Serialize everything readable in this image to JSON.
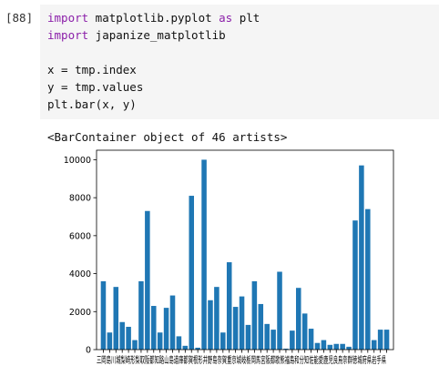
{
  "cell": {
    "prompt": "[88]",
    "code": [
      {
        "kw1": "import",
        "text": " matplotlib.pyplot ",
        "kw2": "as",
        "tail": " plt"
      },
      {
        "kw1": "import",
        "text": " japanize_matplotlib",
        "kw2": "",
        "tail": ""
      },
      {
        "kw1": "",
        "text": "",
        "kw2": "",
        "tail": ""
      },
      {
        "kw1": "",
        "text": "x = tmp.index",
        "kw2": "",
        "tail": ""
      },
      {
        "kw1": "",
        "text": "y = tmp.values",
        "kw2": "",
        "tail": ""
      },
      {
        "kw1": "",
        "text": "plt.bar(x, y)",
        "kw2": "",
        "tail": ""
      }
    ],
    "output_text": "<BarContainer object of 46 artists>"
  },
  "colors": {
    "bar": "#1f77b4",
    "keyword": "#8b1fa9",
    "code_bg": "#f5f5f5"
  },
  "chart_data": {
    "type": "bar",
    "ylim": [
      0,
      10500
    ],
    "yticks": [
      0,
      2000,
      4000,
      6000,
      8000,
      10000
    ],
    "xtick_text": "三岡島川城梨崎形梨取阪都知路山島道庫都賀根形井野島奈賀重京城岐栃岡馬宮阪都歌熊福島和分知佐能愛鹿児良鳥奈群徳城府県岩手県",
    "values": [
      3600,
      900,
      3300,
      1450,
      1200,
      500,
      3600,
      7300,
      2300,
      900,
      2200,
      2850,
      700,
      200,
      8100,
      100,
      10000,
      2600,
      3300,
      900,
      4600,
      2250,
      2800,
      1300,
      3600,
      2400,
      1350,
      1050,
      4100,
      50,
      1000,
      3250,
      1900,
      1100,
      350,
      500,
      250,
      300,
      300,
      150,
      6800,
      9700,
      7400,
      500,
      1050,
      1050
    ]
  }
}
